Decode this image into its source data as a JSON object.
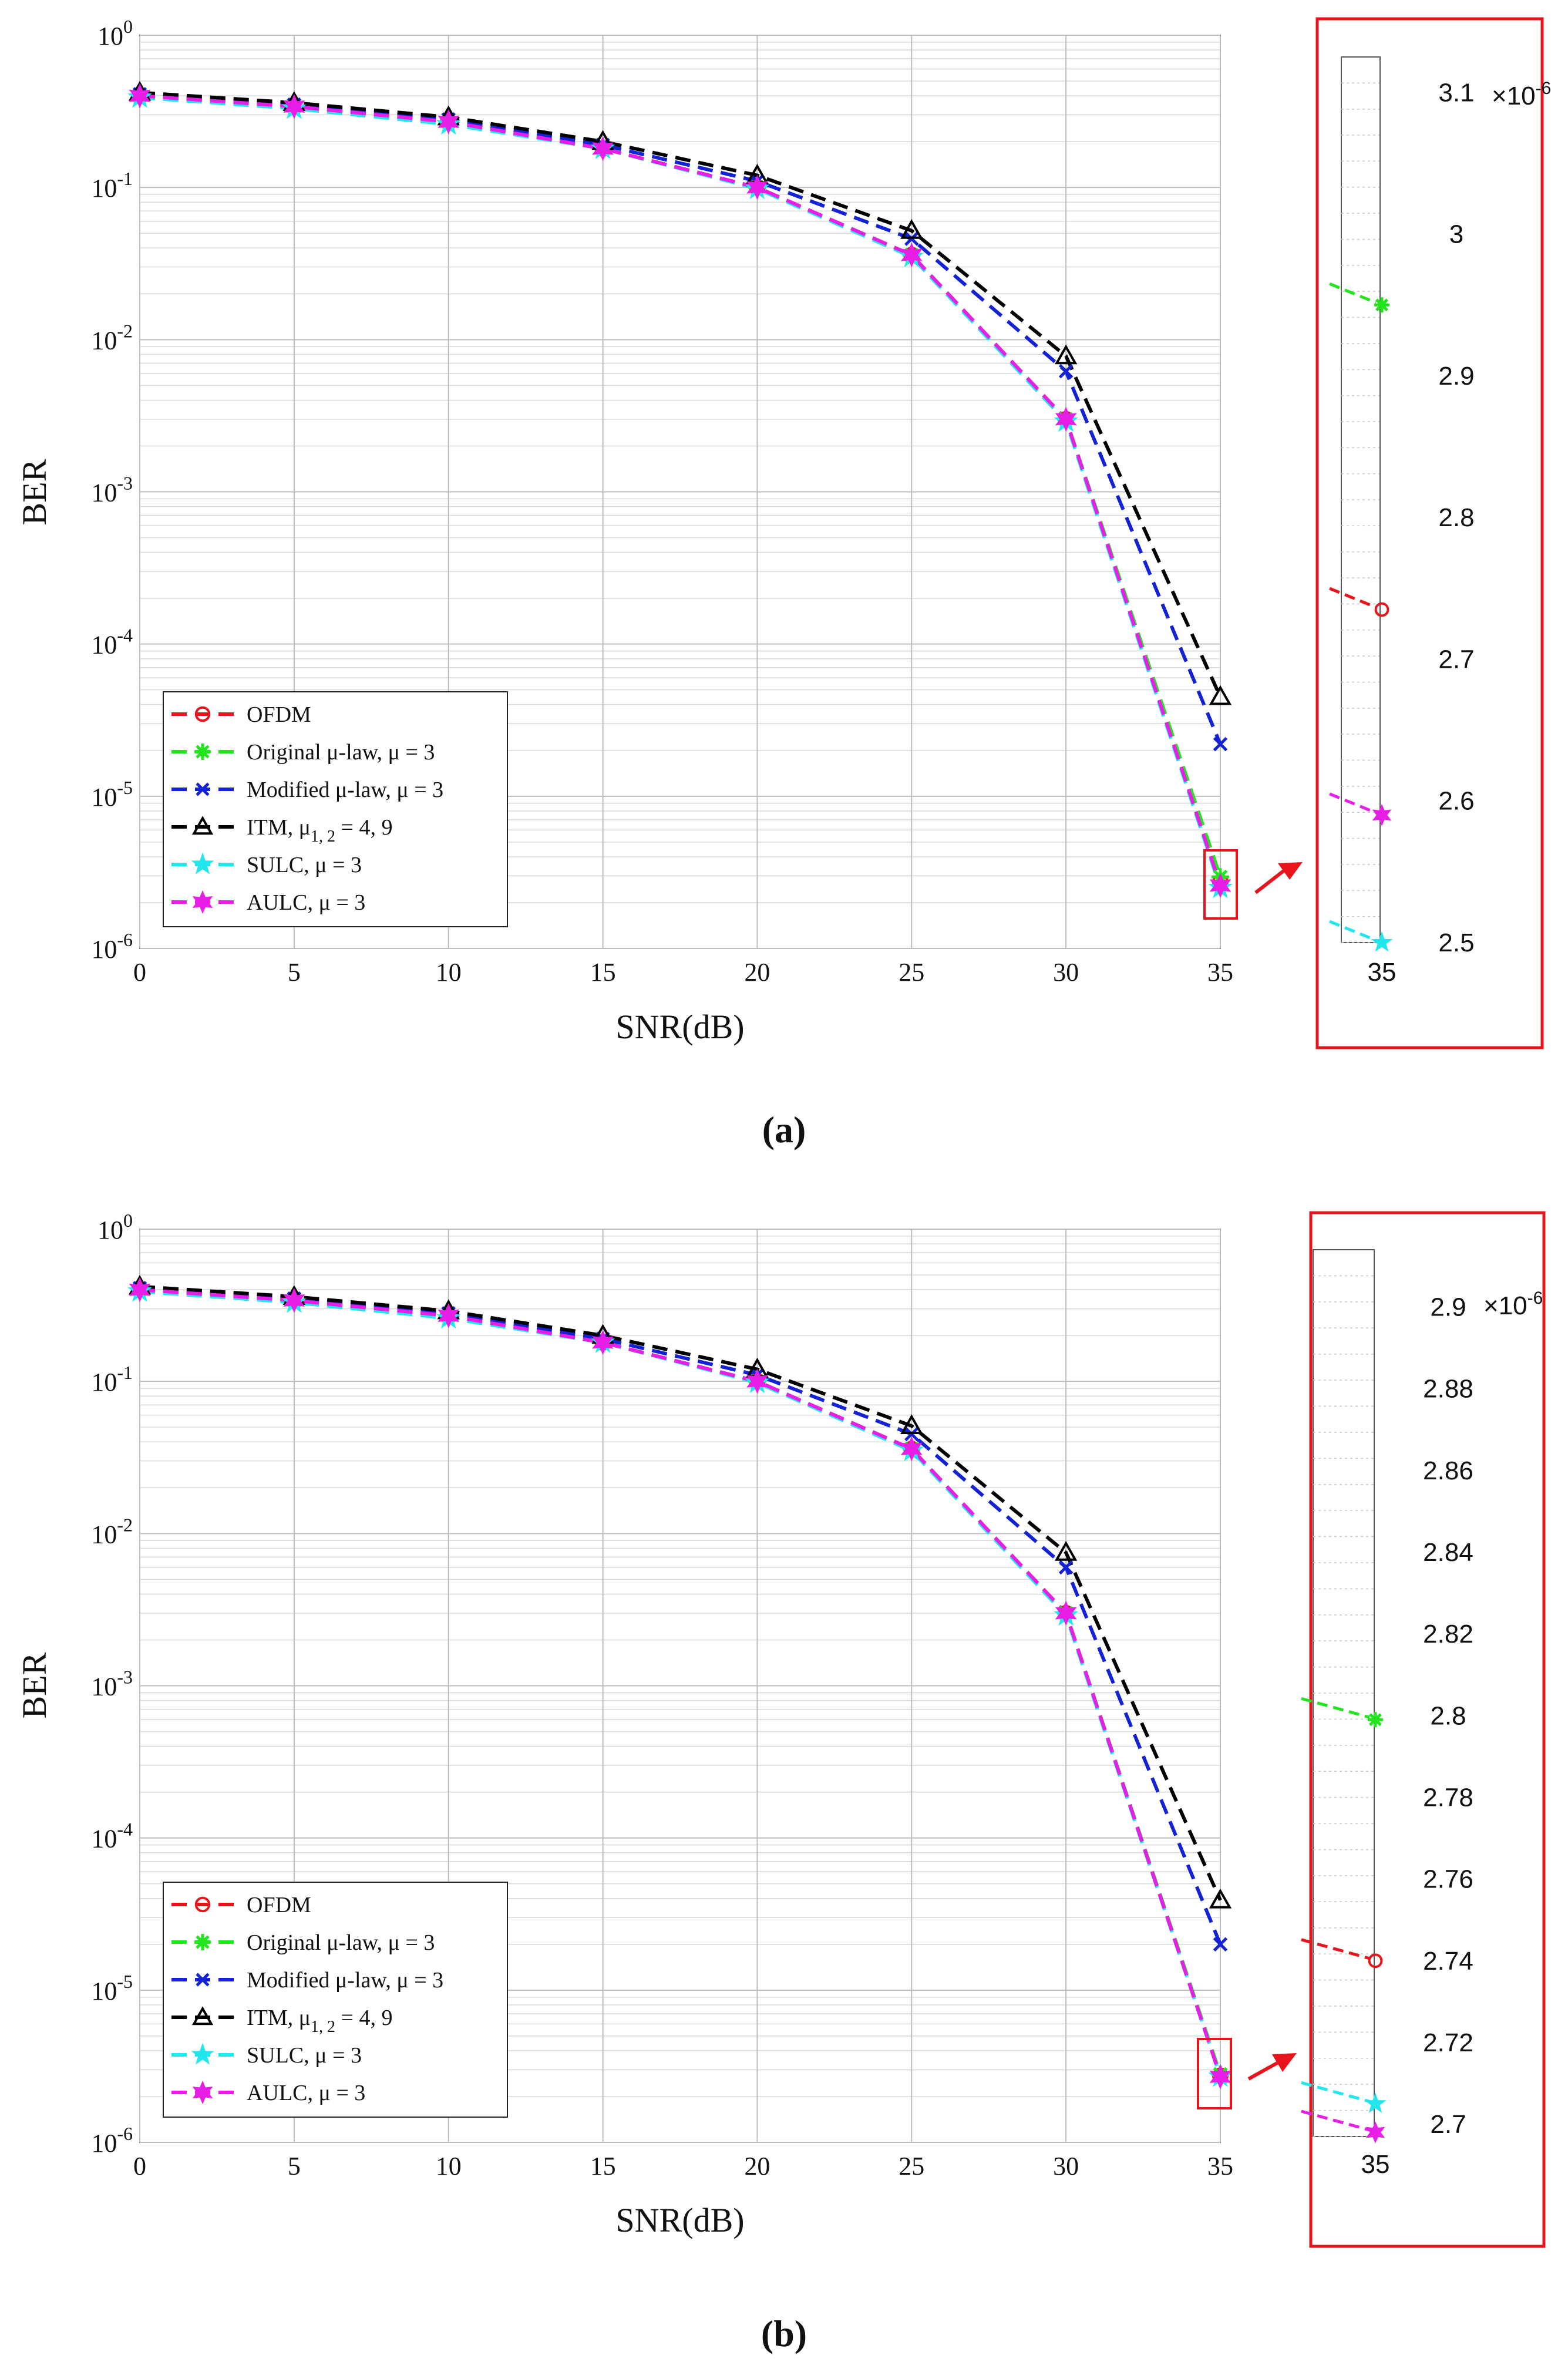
{
  "colors": {
    "OFDM": "#e8141c",
    "Original": "#22e51e",
    "Modified": "#1422d6",
    "ITM": "#000000",
    "SULC": "#22e6ee",
    "AULC": "#e81de6",
    "zoom_frame": "#e8141c"
  },
  "legend": [
    {
      "key": "OFDM",
      "label": "OFDM",
      "marker": "circle"
    },
    {
      "key": "Original",
      "label": "Original μ-law, μ = 3",
      "marker": "asterisk"
    },
    {
      "key": "Modified",
      "label": "Modified μ-law, μ = 3",
      "marker": "x"
    },
    {
      "key": "ITM",
      "label": "ITM, μ1, 2 = 4, 9",
      "label_main": "ITM, μ",
      "label_sub": "1, 2",
      "label_tail": " = 4, 9",
      "marker": "triangle"
    },
    {
      "key": "SULC",
      "label": "SULC, μ = 3",
      "marker": "star5"
    },
    {
      "key": "AULC",
      "label": "AULC, μ = 3",
      "marker": "star6"
    }
  ],
  "chart_data": [
    {
      "type": "line",
      "caption": "(a)",
      "xlabel": "SNR(dB)",
      "ylabel": "BER",
      "yscale": "log",
      "x": [
        0,
        5,
        10,
        15,
        20,
        25,
        30,
        35
      ],
      "x_ticks": [
        "0",
        "5",
        "10",
        "15",
        "20",
        "25",
        "30",
        "35"
      ],
      "xlim": [
        0,
        35
      ],
      "ylim": [
        1e-06,
        1
      ],
      "y_ticks": [
        "10-6",
        "10-5",
        "10-4",
        "10-3",
        "10-2",
        "10-1",
        "100"
      ],
      "grid": true,
      "series": [
        {
          "key": "OFDM",
          "values": [
            0.4,
            0.34,
            0.27,
            0.18,
            0.1,
            0.036,
            0.003,
            2.73e-06
          ]
        },
        {
          "key": "Original",
          "values": [
            0.4,
            0.34,
            0.27,
            0.18,
            0.1,
            0.036,
            0.003,
            2.95e-06
          ]
        },
        {
          "key": "Modified",
          "values": [
            0.41,
            0.35,
            0.28,
            0.19,
            0.11,
            0.046,
            0.0062,
            2.2e-05
          ]
        },
        {
          "key": "ITM",
          "values": [
            0.42,
            0.36,
            0.29,
            0.2,
            0.12,
            0.052,
            0.0078,
            4.5e-05
          ]
        },
        {
          "key": "SULC",
          "values": [
            0.39,
            0.33,
            0.26,
            0.18,
            0.098,
            0.035,
            0.0029,
            2.5e-06
          ]
        },
        {
          "key": "AULC",
          "values": [
            0.4,
            0.34,
            0.27,
            0.18,
            0.1,
            0.036,
            0.003,
            2.59e-06
          ]
        }
      ],
      "inset": {
        "x_tick": "35",
        "ylim": [
          2.5,
          3.125
        ],
        "y_ticks": [
          "2.5",
          "2.6",
          "2.7",
          "2.8",
          "2.9",
          "3",
          "3.1"
        ],
        "exponent": "×10-6",
        "exponent_base": "×10",
        "exponent_sup": "-6",
        "points": [
          {
            "key": "Original",
            "value": 2.95
          },
          {
            "key": "OFDM",
            "value": 2.735
          },
          {
            "key": "AULC",
            "value": 2.59
          },
          {
            "key": "SULC",
            "value": 2.5
          }
        ]
      }
    },
    {
      "type": "line",
      "caption": "(b)",
      "xlabel": "SNR(dB)",
      "ylabel": "BER",
      "yscale": "log",
      "x": [
        0,
        5,
        10,
        15,
        20,
        25,
        30,
        35
      ],
      "x_ticks": [
        "0",
        "5",
        "10",
        "15",
        "20",
        "25",
        "30",
        "35"
      ],
      "xlim": [
        0,
        35
      ],
      "ylim": [
        1e-06,
        1
      ],
      "y_ticks": [
        "10-6",
        "10-5",
        "10-4",
        "10-3",
        "10-2",
        "10-1",
        "100"
      ],
      "grid": true,
      "series": [
        {
          "key": "OFDM",
          "values": [
            0.4,
            0.34,
            0.27,
            0.18,
            0.1,
            0.036,
            0.003,
            2.74e-06
          ]
        },
        {
          "key": "Original",
          "values": [
            0.4,
            0.34,
            0.27,
            0.18,
            0.1,
            0.036,
            0.003,
            2.8e-06
          ]
        },
        {
          "key": "Modified",
          "values": [
            0.41,
            0.35,
            0.28,
            0.19,
            0.11,
            0.045,
            0.006,
            2e-05
          ]
        },
        {
          "key": "ITM",
          "values": [
            0.42,
            0.36,
            0.29,
            0.2,
            0.12,
            0.051,
            0.0075,
            3.9e-05
          ]
        },
        {
          "key": "SULC",
          "values": [
            0.39,
            0.33,
            0.26,
            0.18,
            0.098,
            0.035,
            0.0029,
            2.705e-06
          ]
        },
        {
          "key": "AULC",
          "values": [
            0.4,
            0.34,
            0.27,
            0.18,
            0.1,
            0.036,
            0.003,
            2.698e-06
          ]
        }
      ],
      "inset": {
        "x_tick": "35",
        "ylim": [
          2.697,
          2.914
        ],
        "y_ticks": [
          "2.7",
          "2.72",
          "2.74",
          "2.76",
          "2.78",
          "2.8",
          "2.82",
          "2.84",
          "2.86",
          "2.88",
          "2.9"
        ],
        "exponent": "×10-6",
        "exponent_base": "×10",
        "exponent_sup": "-6",
        "points": [
          {
            "key": "Original",
            "value": 2.799
          },
          {
            "key": "OFDM",
            "value": 2.74
          },
          {
            "key": "SULC",
            "value": 2.705
          },
          {
            "key": "AULC",
            "value": 2.698
          }
        ]
      }
    }
  ]
}
